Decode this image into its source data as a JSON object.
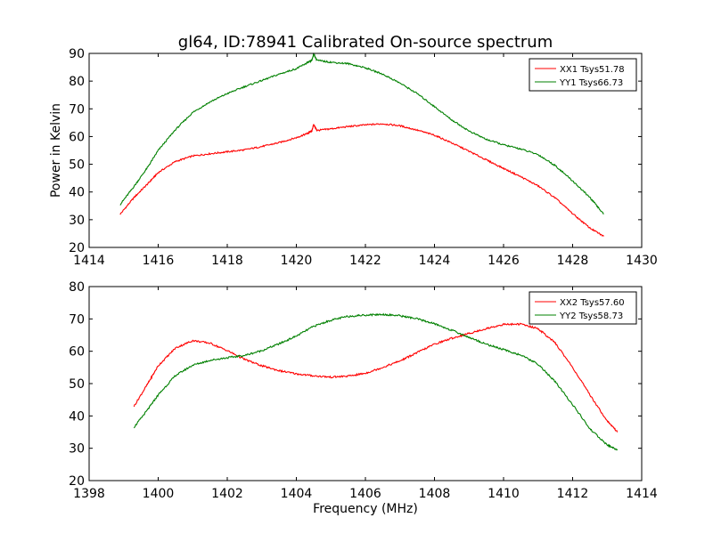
{
  "figure": {
    "title": "gl64, ID:78941 Calibrated On-source spectrum",
    "ylabel": "Power in Kelvin",
    "xlabel": "Frequency (MHz)"
  },
  "colors": {
    "xx": "#ff0000",
    "yy": "#008000",
    "axes": "#000000",
    "background": "#ffffff"
  },
  "chart_data": [
    {
      "type": "line",
      "title": "gl64, ID:78941 Calibrated On-source spectrum",
      "xlabel": "",
      "ylabel": "Power in Kelvin",
      "xlim": [
        1414,
        1430
      ],
      "ylim": [
        20,
        90
      ],
      "xticks": [
        1414,
        1416,
        1418,
        1420,
        1422,
        1424,
        1426,
        1428,
        1430
      ],
      "yticks": [
        20,
        30,
        40,
        50,
        60,
        70,
        80,
        90
      ],
      "grid": false,
      "legend_position": "top-right",
      "series": [
        {
          "name": "XX1 Tsys51.78",
          "color": "#ff0000",
          "x": [
            1414.9,
            1415.3,
            1415.7,
            1416.0,
            1416.5,
            1417.0,
            1417.5,
            1418.0,
            1418.5,
            1419.0,
            1419.5,
            1420.0,
            1420.3,
            1420.45,
            1420.5,
            1420.6,
            1421.0,
            1421.5,
            1422.0,
            1422.5,
            1423.0,
            1423.5,
            1424.0,
            1424.5,
            1425.0,
            1425.5,
            1426.0,
            1426.5,
            1427.0,
            1427.5,
            1428.0,
            1428.5,
            1428.9
          ],
          "y": [
            32,
            38,
            43,
            47,
            51,
            53,
            53.8,
            54.5,
            55.2,
            56.4,
            57.8,
            59.6,
            61,
            62,
            64.3,
            62.2,
            62.8,
            63.6,
            64.2,
            64.6,
            63.9,
            62.3,
            60.5,
            57.7,
            54.7,
            51.6,
            48.5,
            45.5,
            42.2,
            37.8,
            32.2,
            27,
            24
          ]
        },
        {
          "name": "YY1 Tsys66.73",
          "color": "#008000",
          "x": [
            1414.9,
            1415.3,
            1415.7,
            1416.0,
            1416.5,
            1417.0,
            1417.5,
            1418.0,
            1418.5,
            1419.0,
            1419.5,
            1420.0,
            1420.3,
            1420.45,
            1420.5,
            1420.6,
            1421.0,
            1421.5,
            1422.0,
            1422.5,
            1423.0,
            1423.5,
            1424.0,
            1424.5,
            1425.0,
            1425.5,
            1426.0,
            1426.5,
            1427.0,
            1427.5,
            1428.0,
            1428.5,
            1428.9
          ],
          "y": [
            35.5,
            42,
            49,
            55,
            62.5,
            68.7,
            72.5,
            75.5,
            78,
            80.2,
            82.5,
            84.5,
            86.5,
            87.5,
            89.7,
            87.5,
            86.8,
            86.3,
            84.8,
            82.5,
            79.3,
            75.5,
            70.8,
            66,
            62,
            59,
            57,
            55.5,
            53.5,
            49.5,
            44,
            38,
            32
          ]
        }
      ]
    },
    {
      "type": "line",
      "title": "",
      "xlabel": "Frequency (MHz)",
      "ylabel": "",
      "xlim": [
        1398,
        1414
      ],
      "ylim": [
        20,
        80
      ],
      "xticks": [
        1398,
        1400,
        1402,
        1404,
        1406,
        1408,
        1410,
        1412,
        1414
      ],
      "yticks": [
        20,
        30,
        40,
        50,
        60,
        70,
        80
      ],
      "grid": false,
      "legend_position": "top-right",
      "series": [
        {
          "name": "XX2 Tsys57.60",
          "color": "#ff0000",
          "x": [
            1399.3,
            1399.7,
            1400.0,
            1400.5,
            1401.0,
            1401.5,
            1402.0,
            1402.5,
            1403.0,
            1403.5,
            1404.0,
            1404.5,
            1405.0,
            1405.5,
            1406.0,
            1406.5,
            1407.0,
            1407.5,
            1408.0,
            1408.5,
            1409.0,
            1409.5,
            1410.0,
            1410.5,
            1411.0,
            1411.5,
            1412.0,
            1412.5,
            1413.0,
            1413.3
          ],
          "y": [
            43,
            50,
            55.5,
            61,
            63.3,
            62.5,
            60.2,
            57.5,
            55.5,
            54,
            53,
            52.4,
            52,
            52.3,
            53.2,
            55,
            57,
            59.6,
            62.2,
            64,
            65.5,
            67,
            68.3,
            68.4,
            67,
            62.5,
            55,
            46.5,
            38.5,
            35
          ]
        },
        {
          "name": "YY2 Tsys58.73",
          "color": "#008000",
          "x": [
            1399.3,
            1399.7,
            1400.0,
            1400.5,
            1401.0,
            1401.5,
            1402.0,
            1402.5,
            1403.0,
            1403.5,
            1404.0,
            1404.5,
            1405.0,
            1405.5,
            1406.0,
            1406.5,
            1407.0,
            1407.5,
            1408.0,
            1408.5,
            1409.0,
            1409.5,
            1410.0,
            1410.5,
            1411.0,
            1411.5,
            1412.0,
            1412.5,
            1413.0,
            1413.3
          ],
          "y": [
            36.5,
            42,
            46.5,
            52.5,
            55.7,
            57.2,
            58,
            58.7,
            60.2,
            62.3,
            64.7,
            67.7,
            69.6,
            70.8,
            71.2,
            71.4,
            71,
            70,
            68.5,
            66.5,
            64.3,
            62.2,
            60.5,
            58.8,
            56,
            50.5,
            43.5,
            36,
            31,
            29.5
          ]
        }
      ]
    }
  ]
}
